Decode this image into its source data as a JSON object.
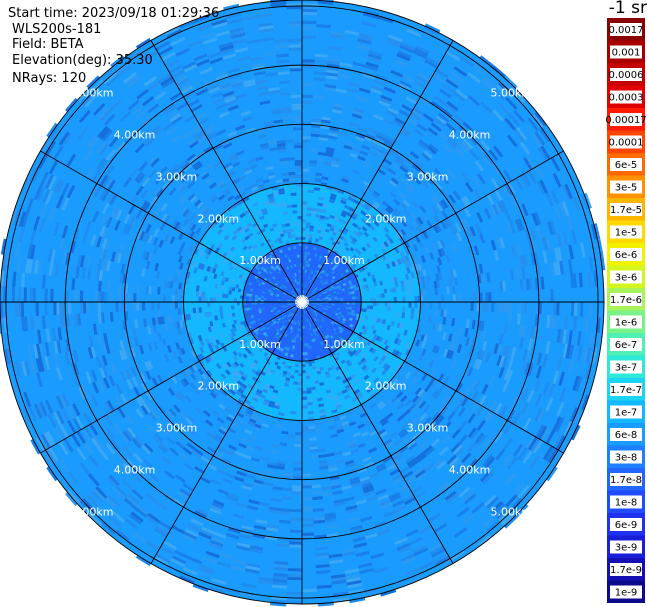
{
  "header": {
    "start_time": "Start time: 2023/09/18 01:29:36",
    "instrument": "WLS200s-181",
    "field": "Field: BETA",
    "elevation": "Elevation(deg): 35.30",
    "nrays": "NRays: 120",
    "unit": "-1 sr"
  },
  "colorbar": {
    "labels": [
      "0.0017",
      "0.001",
      "0.0006",
      "0.0003",
      "0.00017",
      "0.0001",
      "6e-5",
      "3e-5",
      "1.7e-5",
      "1e-5",
      "6e-6",
      "3e-6",
      "1.7e-6",
      "1e-6",
      "6e-7",
      "3e-7",
      "1.7e-7",
      "1e-7",
      "6e-8",
      "3e-8",
      "1.7e-8",
      "1e-8",
      "6e-9",
      "3e-9",
      "1.7e-9",
      "1e-9"
    ],
    "colors": [
      "#8b0000",
      "#a80000",
      "#c40000",
      "#e00000",
      "#ff1a00",
      "#ff4500",
      "#ff6a00",
      "#ff9000",
      "#ffb600",
      "#ffd800",
      "#f2f200",
      "#d4f51e",
      "#a8f25a",
      "#7af28a",
      "#4ef0b4",
      "#2ee8d8",
      "#1ad4f2",
      "#14b8ff",
      "#1a9cff",
      "#1f80ff",
      "#2066ff",
      "#1f4cff",
      "#1e32f0",
      "#1a1ed8",
      "#1410b4",
      "#0c0a8c"
    ]
  },
  "chart_data": {
    "type": "heatmap",
    "projection": "polar-ppi",
    "field": "BETA",
    "elevation_deg": 35.3,
    "nrays": 120,
    "range_rings_km": [
      1,
      2,
      3,
      4,
      5
    ],
    "ring_labels": [
      "1.00km",
      "2.00km",
      "3.00km",
      "4.00km",
      "5.00km"
    ],
    "max_range_km": 5.1,
    "spokes_deg": [
      0,
      30,
      60,
      90,
      120,
      150,
      180,
      210,
      240,
      270,
      300,
      330
    ],
    "color_scale": "log",
    "value_range": [
      1e-09,
      0.0017
    ],
    "gates": [
      {
        "range_km": [
          0,
          1.0
        ],
        "value": 1.7e-08
      },
      {
        "range_km": [
          1.0,
          2.0
        ],
        "value": 1e-07
      },
      {
        "range_km": [
          2.0,
          5.1
        ],
        "value": 6e-08
      }
    ]
  }
}
